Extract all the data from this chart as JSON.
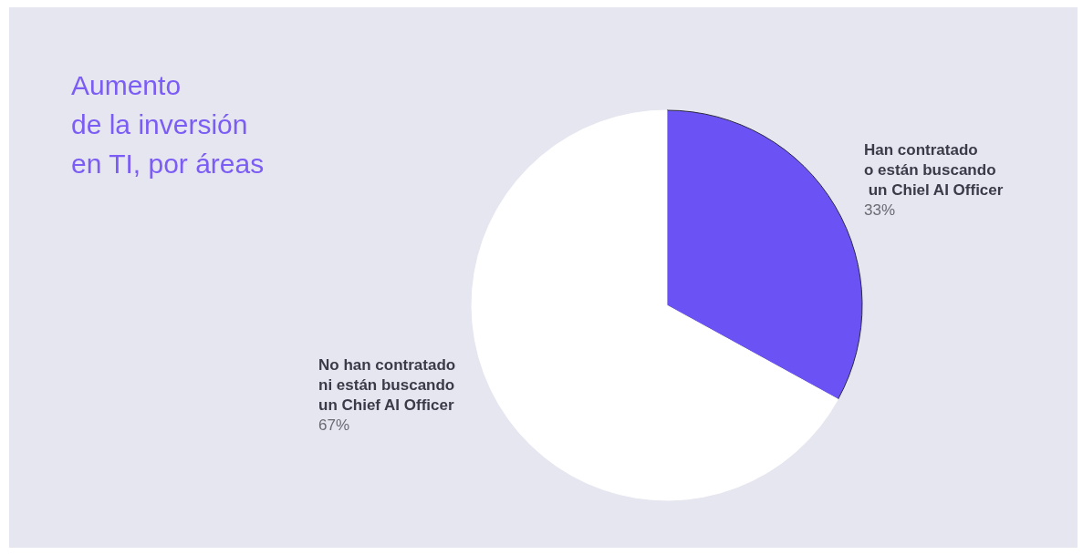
{
  "chart_data": {
    "type": "pie",
    "title": "Aumento\nde la inversión\nen TI, por áreas",
    "categories": [
      "Han contratado\no están buscando\n un Chiel AI Officer",
      "No han contratado\nni están buscando\nun Chief AI Officer"
    ],
    "values": [
      33,
      67
    ],
    "colors": [
      "#6b52f5",
      "#ffffff"
    ],
    "value_labels": [
      "33%",
      "67%"
    ]
  }
}
